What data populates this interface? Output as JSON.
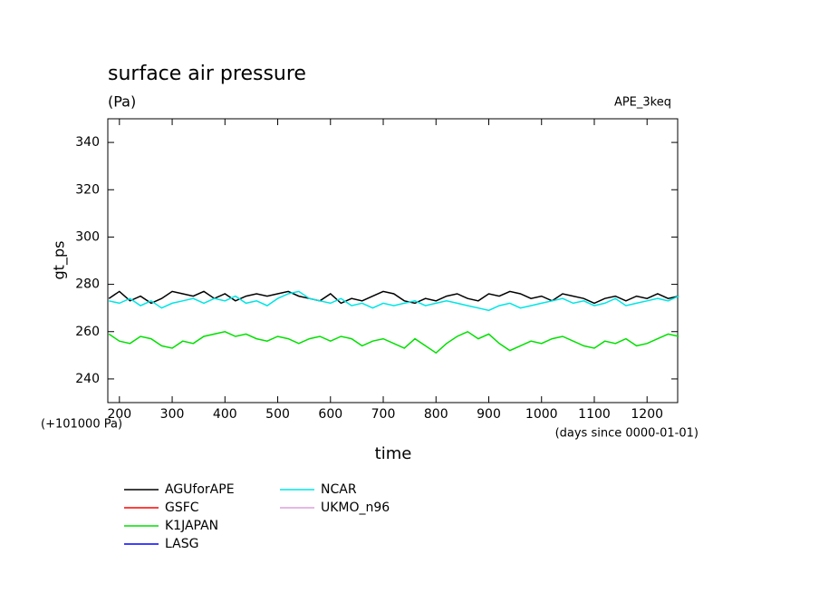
{
  "chart_data": {
    "type": "line",
    "title": "surface air pressure",
    "subtitle": "(Pa)",
    "annotation": "APE_3keq",
    "y_offset_label": "(+101000 Pa)",
    "x_unit_label": "(days since 0000-01-01)",
    "xlabel": "time",
    "ylabel": "gt_ps",
    "xlim": [
      178,
      1258
    ],
    "ylim": [
      230,
      350
    ],
    "xticks": [
      200,
      300,
      400,
      500,
      600,
      700,
      800,
      900,
      1000,
      1100,
      1200
    ],
    "yticks": [
      240,
      260,
      280,
      300,
      320,
      340
    ],
    "x": [
      180,
      200,
      220,
      240,
      260,
      280,
      300,
      320,
      340,
      360,
      380,
      400,
      420,
      440,
      460,
      480,
      500,
      520,
      540,
      560,
      580,
      600,
      620,
      640,
      660,
      680,
      700,
      720,
      740,
      760,
      780,
      800,
      820,
      840,
      860,
      880,
      900,
      920,
      940,
      960,
      980,
      1000,
      1020,
      1040,
      1060,
      1080,
      1100,
      1120,
      1140,
      1160,
      1180,
      1200,
      1220,
      1240,
      1260
    ],
    "series": [
      {
        "name": "AGUforAPE",
        "color": "#000000",
        "values": [
          274,
          277,
          273,
          275,
          272,
          274,
          277,
          276,
          275,
          277,
          274,
          276,
          273,
          275,
          276,
          275,
          276,
          277,
          275,
          274,
          273,
          276,
          272,
          274,
          273,
          275,
          277,
          276,
          273,
          272,
          274,
          273,
          275,
          276,
          274,
          273,
          276,
          275,
          277,
          276,
          274,
          275,
          273,
          276,
          275,
          274,
          272,
          274,
          275,
          273,
          275,
          274,
          276,
          274,
          275
        ]
      },
      {
        "name": "GSFC",
        "color": "#ff0000",
        "values": [
          null,
          null,
          null,
          null,
          null,
          null,
          null,
          null,
          null,
          null,
          null,
          null,
          null,
          null,
          null,
          null,
          null,
          null,
          null,
          null,
          null,
          null,
          null,
          null,
          null,
          null,
          null,
          null,
          null,
          null,
          null,
          null,
          null,
          null,
          null,
          null,
          null,
          null,
          null,
          null,
          null,
          null,
          null,
          null,
          null,
          null,
          null,
          null,
          null,
          null,
          null,
          null,
          null,
          null,
          null
        ]
      },
      {
        "name": "K1JAPAN",
        "color": "#00e000",
        "values": [
          259,
          256,
          255,
          258,
          257,
          254,
          253,
          256,
          255,
          258,
          259,
          260,
          258,
          259,
          257,
          256,
          258,
          257,
          255,
          257,
          258,
          256,
          258,
          257,
          254,
          256,
          257,
          255,
          253,
          257,
          254,
          251,
          255,
          258,
          260,
          257,
          259,
          255,
          252,
          254,
          256,
          255,
          257,
          258,
          256,
          254,
          253,
          256,
          255,
          257,
          254,
          255,
          257,
          259,
          258
        ]
      },
      {
        "name": "LASG",
        "color": "#0000ff",
        "values": [
          null,
          null,
          null,
          null,
          null,
          null,
          null,
          null,
          null,
          null,
          null,
          null,
          null,
          null,
          null,
          null,
          null,
          null,
          null,
          null,
          null,
          null,
          null,
          null,
          null,
          null,
          null,
          null,
          null,
          null,
          null,
          null,
          null,
          null,
          null,
          null,
          null,
          null,
          null,
          null,
          null,
          null,
          null,
          null,
          null,
          null,
          null,
          null,
          null,
          null,
          null,
          null,
          null,
          null,
          null
        ]
      },
      {
        "name": "NCAR",
        "color": "#00e5e5",
        "values": [
          273,
          272,
          274,
          271,
          273,
          270,
          272,
          273,
          274,
          272,
          274,
          273,
          275,
          272,
          273,
          271,
          274,
          276,
          277,
          274,
          273,
          272,
          274,
          271,
          272,
          270,
          272,
          271,
          272,
          273,
          271,
          272,
          273,
          272,
          271,
          270,
          269,
          271,
          272,
          270,
          271,
          272,
          273,
          274,
          272,
          273,
          271,
          272,
          274,
          271,
          272,
          273,
          274,
          273,
          275
        ]
      },
      {
        "name": "UKMO_n96",
        "color": "#dda0dd",
        "values": [
          null,
          null,
          null,
          null,
          null,
          null,
          null,
          null,
          null,
          null,
          null,
          null,
          null,
          null,
          null,
          null,
          null,
          null,
          null,
          null,
          null,
          null,
          null,
          null,
          null,
          null,
          null,
          null,
          null,
          null,
          null,
          null,
          null,
          null,
          null,
          null,
          null,
          null,
          null,
          null,
          null,
          null,
          null,
          null,
          null,
          null,
          null,
          null,
          null,
          null,
          null,
          null,
          null,
          null,
          null
        ]
      }
    ]
  }
}
